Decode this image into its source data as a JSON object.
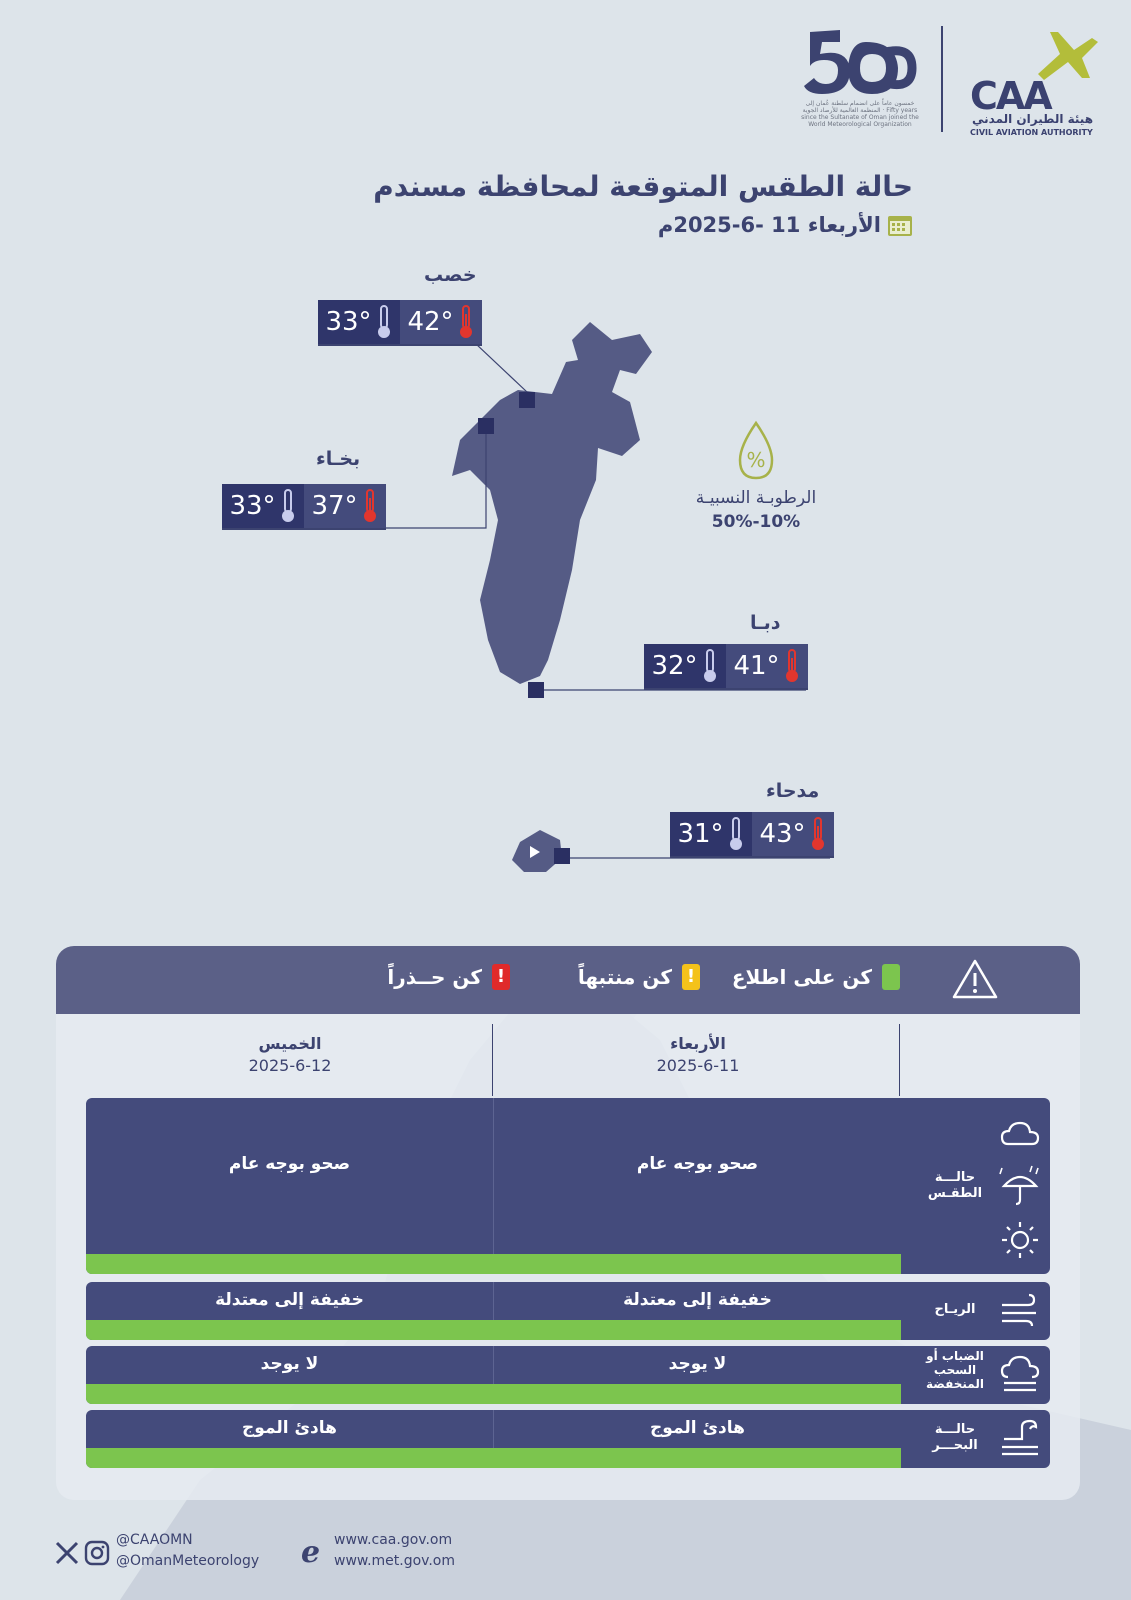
{
  "header": {
    "logo50_caption": "خمسون عاماً على انضمام سلطنة عُمان إلى المنظمة العالمية للأرصاد الجوية · Fifty years since the Sultanate of Oman joined the World Meteorological Organization",
    "caa_logo_text": "CAA",
    "caa_name_ar": "هيئة الطيران المدني",
    "caa_name_en": "CIVIL AVIATION AUTHORITY",
    "title": "حالة الطقس المتوقعة لمحافظة مسندم",
    "date": "الأربعاء 11 -6-2025م"
  },
  "cities": [
    {
      "name": "خصب",
      "high": "42°",
      "low": "33°"
    },
    {
      "name": "بخـاء",
      "high": "37°",
      "low": "33°"
    },
    {
      "name": "دبـا",
      "high": "41°",
      "low": "32°"
    },
    {
      "name": "مدحاء",
      "high": "43°",
      "low": "31°"
    }
  ],
  "humidity": {
    "label": "الرطوبـة النسبيـة",
    "value": "50%-10%",
    "icon": "percent-drop-icon"
  },
  "legend": {
    "info": "كن على اطلاع",
    "alert": "كن منتبهاً",
    "warning": "كن حــذراً",
    "colors": {
      "info": "#7cc54e",
      "alert": "#f4c21a",
      "warning": "#e02a2a"
    }
  },
  "days": [
    {
      "name": "الأربعاء",
      "date": "2025-6-11"
    },
    {
      "name": "الخميس",
      "date": "2025-6-12"
    }
  ],
  "rows": [
    {
      "label": "حالـــة الطقـس",
      "icon": "weather-icons",
      "day1": "صحو بوجه عام",
      "day2": "صحو بوجه عام"
    },
    {
      "label": "الريـاح",
      "icon": "wind-icon",
      "day1": "خفيفة إلى معتدلة",
      "day2": "خفيفة إلى معتدلة"
    },
    {
      "label": "الضباب أو السحب المنخفضة",
      "icon": "fog-icon",
      "day1": "لا يوجد",
      "day2": "لا يوجد"
    },
    {
      "label": "حالـــة البحـــر",
      "icon": "sea-wave-icon",
      "day1": "هادئ الموج",
      "day2": "هادئ الموج"
    }
  ],
  "footer": {
    "social1": "@CAAOMN",
    "social2": "@OmanMeteorology",
    "web1": "www.caa.gov.om",
    "web2": "www.met.gov.om"
  }
}
